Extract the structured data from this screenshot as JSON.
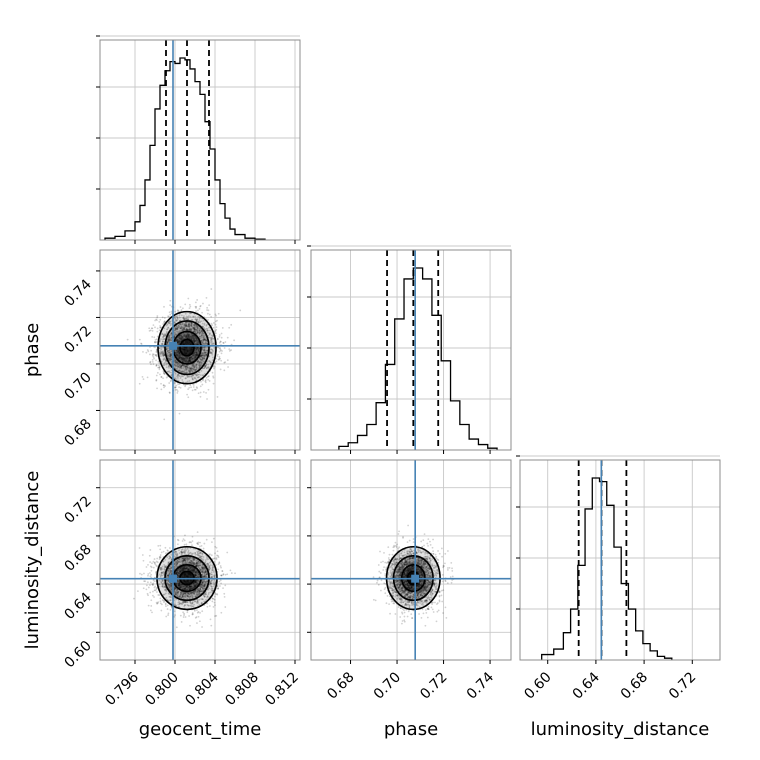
{
  "chart_data": {
    "type": "corner",
    "parameters": [
      "geocent_time",
      "phase",
      "luminosity_distance"
    ],
    "axis_labels": {
      "x": [
        "geocent_time",
        "phase",
        "luminosity_distance"
      ],
      "y": [
        "phase",
        "luminosity_distance"
      ]
    },
    "ranges": {
      "geocent_time": [
        0.7925,
        0.8125
      ],
      "phase": [
        0.663,
        0.749
      ],
      "luminosity_distance": [
        0.577,
        0.743
      ]
    },
    "ticks": {
      "geocent_time": [
        0.796,
        0.8,
        0.804,
        0.808,
        0.812
      ],
      "phase": [
        0.68,
        0.7,
        0.72,
        0.74
      ],
      "luminosity_distance": [
        0.6,
        0.64,
        0.68,
        0.72
      ]
    },
    "tick_labels": {
      "geocent_time": [
        "0.796",
        "0.800",
        "0.804",
        "0.808",
        "0.812"
      ],
      "phase": [
        "0.68",
        "0.70",
        "0.72",
        "0.74"
      ],
      "luminosity_distance": [
        "0.60",
        "0.64",
        "0.68",
        "0.72"
      ]
    },
    "truths": {
      "geocent_time": 0.7998,
      "phase": 0.7078,
      "luminosity_distance": 0.6445
    },
    "quantiles": {
      "geocent_time": [
        0.7991,
        0.8012,
        0.8034
      ],
      "phase": [
        0.6957,
        0.707,
        0.7177
      ],
      "luminosity_distance": [
        0.6257,
        0.6446,
        0.6653
      ]
    },
    "marginals": {
      "geocent_time": {
        "edges": [
          0.793,
          0.794,
          0.795,
          0.796,
          0.7965,
          0.797,
          0.7975,
          0.798,
          0.7985,
          0.799,
          0.7995,
          0.8,
          0.8005,
          0.801,
          0.8015,
          0.802,
          0.8025,
          0.803,
          0.8035,
          0.804,
          0.8045,
          0.805,
          0.8055,
          0.806,
          0.807,
          0.808,
          0.809
        ],
        "counts": [
          1,
          2,
          5,
          10,
          19,
          33,
          52,
          72,
          85,
          93,
          98,
          97,
          100,
          99,
          94,
          87,
          80,
          65,
          50,
          33,
          20,
          12,
          6,
          3,
          1,
          0.5
        ]
      },
      "phase": {
        "edges": [
          0.675,
          0.679,
          0.683,
          0.687,
          0.691,
          0.695,
          0.699,
          0.703,
          0.707,
          0.711,
          0.715,
          0.719,
          0.723,
          0.727,
          0.731,
          0.735,
          0.739,
          0.743
        ],
        "counts": [
          2,
          4,
          8,
          14,
          26,
          47,
          72,
          94,
          100,
          94,
          74,
          49,
          27,
          14,
          6,
          3,
          1
        ]
      },
      "luminosity_distance": {
        "edges": [
          0.595,
          0.605,
          0.613,
          0.619,
          0.625,
          0.631,
          0.637,
          0.643,
          0.649,
          0.655,
          0.661,
          0.667,
          0.673,
          0.679,
          0.685,
          0.691,
          0.697,
          0.703
        ],
        "counts": [
          3,
          6,
          15,
          28,
          52,
          83,
          100,
          98,
          85,
          62,
          42,
          28,
          16,
          9,
          5,
          2,
          1
        ]
      }
    },
    "pairs": [
      {
        "x": "geocent_time",
        "y": "phase",
        "center": [
          0.8012,
          0.707
        ],
        "contour_radii": [
          [
            0.0007,
            0.0035
          ],
          [
            0.0014,
            0.007
          ],
          [
            0.0022,
            0.0115
          ],
          [
            0.0029,
            0.0155
          ]
        ]
      },
      {
        "x": "geocent_time",
        "y": "luminosity_distance",
        "center": [
          0.8012,
          0.645
        ],
        "contour_radii": [
          [
            0.0007,
            0.0055
          ],
          [
            0.0014,
            0.011
          ],
          [
            0.0022,
            0.0185
          ],
          [
            0.003,
            0.026
          ]
        ]
      },
      {
        "x": "phase",
        "y": "luminosity_distance",
        "center": [
          0.707,
          0.645
        ],
        "contour_radii": [
          [
            0.0025,
            0.0055
          ],
          [
            0.005,
            0.011
          ],
          [
            0.0085,
            0.0185
          ],
          [
            0.0115,
            0.026
          ]
        ]
      }
    ],
    "colors": {
      "histogram": "#000000",
      "quantile_lines": "#000000",
      "truth": "#4682b4",
      "density": "#000000",
      "axes_frame": "#8c8c8c",
      "grid": "#c8c8c8"
    },
    "grid": true
  }
}
